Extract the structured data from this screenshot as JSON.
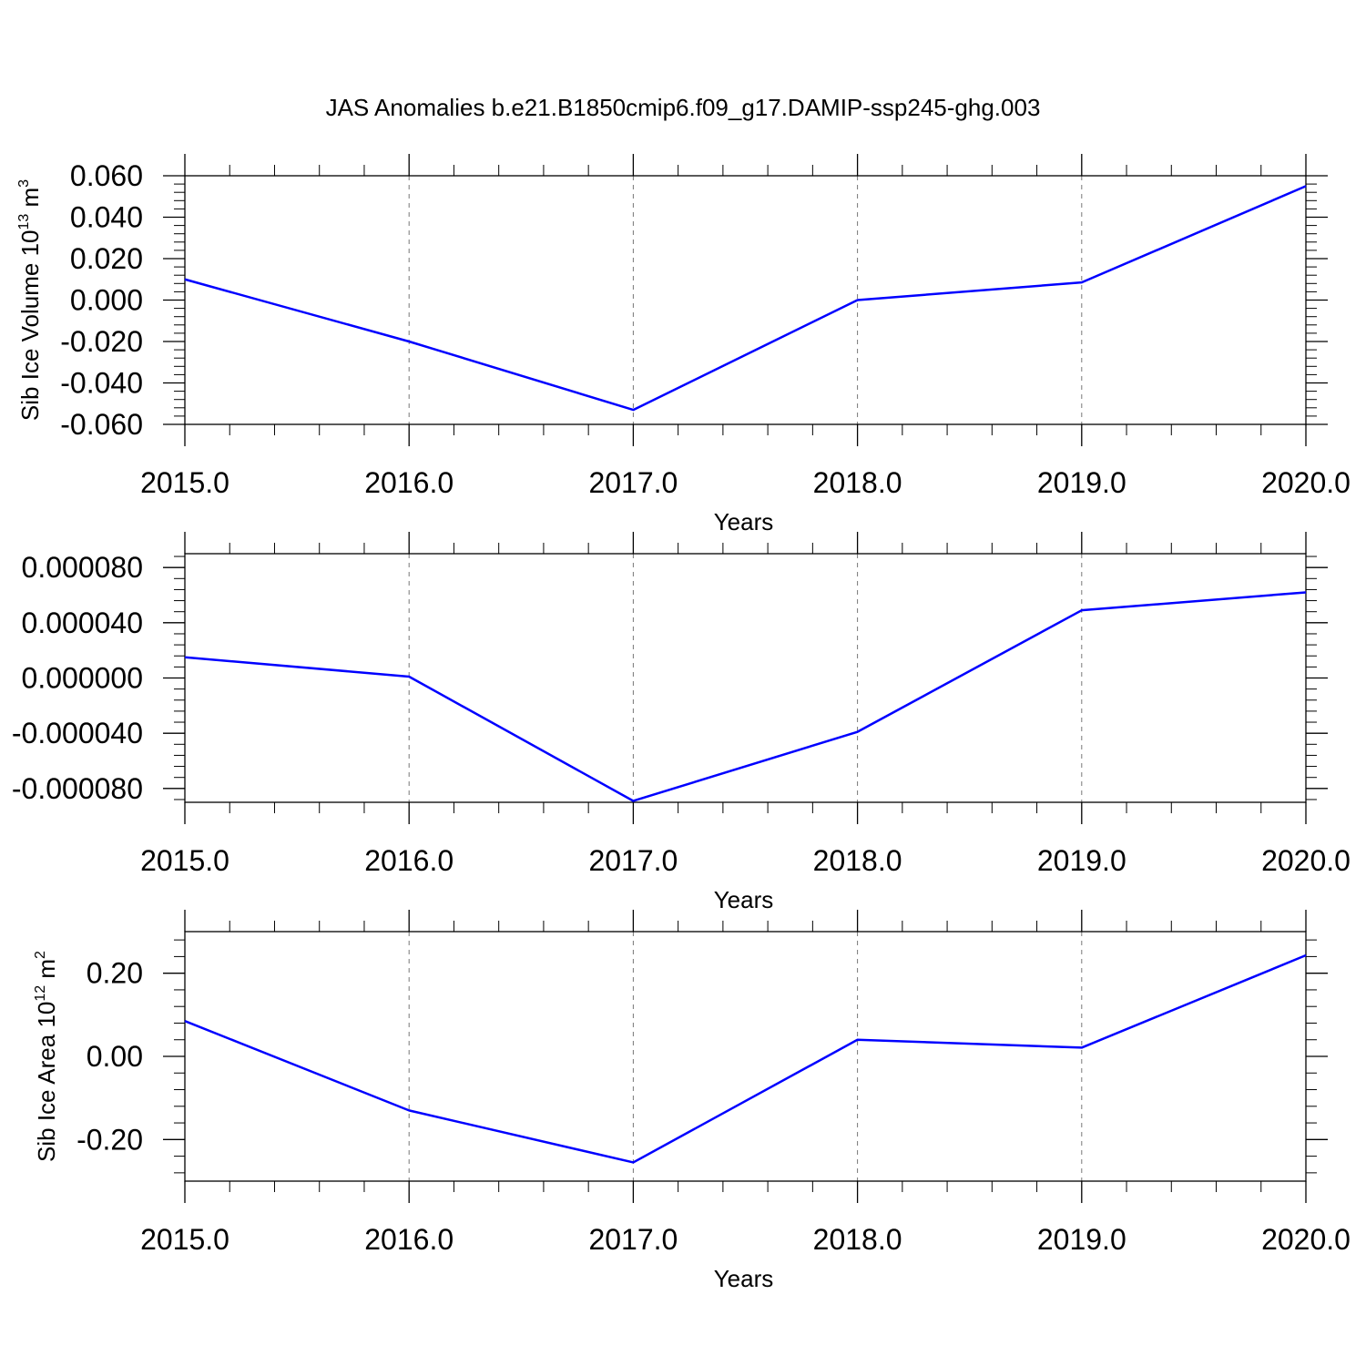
{
  "chart_data": [
    {
      "type": "line",
      "title": "JAS Anomalies b.e21.B1850cmip6.f09_g17.DAMIP-ssp245-ghg.003",
      "xlabel": "Years",
      "ylabel": {
        "base": "Sib Ice Volume 10",
        "exp1": "13",
        "mid": " m",
        "exp2": "3"
      },
      "x": [
        2015,
        2016,
        2017,
        2018,
        2019,
        2020
      ],
      "x_tick_labels": [
        "2015.0",
        "2016.0",
        "2017.0",
        "2018.0",
        "2019.0",
        "2020.0"
      ],
      "xlim": [
        2015,
        2020
      ],
      "ylim": [
        -0.06,
        0.06
      ],
      "y_ticks": [
        -0.06,
        -0.04,
        -0.02,
        0.0,
        0.02,
        0.04,
        0.06
      ],
      "y_tick_labels": [
        "-0.060",
        "-0.040",
        "-0.020",
        "0.000",
        "0.020",
        "0.040",
        "0.060"
      ],
      "series": [
        {
          "values": [
            0.01,
            -0.02,
            -0.053,
            0.0,
            0.0085,
            0.055
          ]
        }
      ],
      "line_color": "#0000ff",
      "grid": "vertical dashed"
    },
    {
      "type": "line",
      "xlabel": "Years",
      "ylabel": null,
      "x": [
        2015,
        2016,
        2017,
        2018,
        2019,
        2020
      ],
      "x_tick_labels": [
        "2015.0",
        "2016.0",
        "2017.0",
        "2018.0",
        "2019.0",
        "2020.0"
      ],
      "xlim": [
        2015,
        2020
      ],
      "ylim": [
        -9e-05,
        9e-05
      ],
      "y_ticks": [
        -8e-05,
        -4e-05,
        0.0,
        4e-05,
        8e-05
      ],
      "y_tick_labels": [
        "-0.000080",
        "-0.000040",
        "0.000000",
        "0.000040",
        "0.000080"
      ],
      "series": [
        {
          "values": [
            1.5e-05,
            1e-06,
            -8.9e-05,
            -3.9e-05,
            4.9e-05,
            6.2e-05
          ]
        }
      ],
      "line_color": "#0000ff",
      "grid": "vertical dashed"
    },
    {
      "type": "line",
      "xlabel": "Years",
      "ylabel": {
        "base": "Sib Ice Area 10",
        "exp1": "12",
        "mid": " m",
        "exp2": "2"
      },
      "x": [
        2015,
        2016,
        2017,
        2018,
        2019,
        2020
      ],
      "x_tick_labels": [
        "2015.0",
        "2016.0",
        "2017.0",
        "2018.0",
        "2019.0",
        "2020.0"
      ],
      "xlim": [
        2015,
        2020
      ],
      "ylim": [
        -0.3,
        0.3
      ],
      "y_ticks": [
        -0.2,
        0.0,
        0.2
      ],
      "y_tick_labels": [
        "-0.20",
        "0.00",
        "0.20"
      ],
      "series": [
        {
          "values": [
            0.085,
            -0.13,
            -0.255,
            0.04,
            0.021,
            0.243
          ]
        }
      ],
      "line_color": "#0000ff",
      "grid": "vertical dashed"
    }
  ]
}
